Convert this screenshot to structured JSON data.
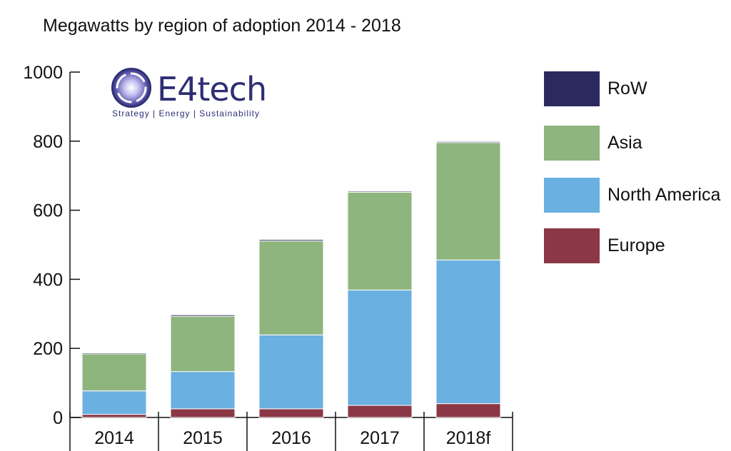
{
  "chart_data": {
    "type": "bar",
    "stacked": true,
    "title": "Megawatts by region of adoption 2014 - 2018",
    "categories": [
      "2014",
      "2015",
      "2016",
      "2017",
      "2018f"
    ],
    "series": [
      {
        "name": "Europe",
        "color": "#8b3746",
        "values": [
          9,
          25,
          25,
          35,
          40
        ]
      },
      {
        "name": "North America",
        "color": "#6ab0e0",
        "values": [
          68,
          108,
          214,
          334,
          416
        ]
      },
      {
        "name": "Asia",
        "color": "#8eb57e",
        "values": [
          107,
          160,
          272,
          283,
          340
        ]
      },
      {
        "name": "RoW",
        "color": "#2a2a5e",
        "values": [
          3,
          4,
          4,
          3,
          3
        ]
      }
    ],
    "legend_order": [
      "RoW",
      "Asia",
      "North America",
      "Europe"
    ],
    "legend_position": "right",
    "ylim": [
      0,
      1000
    ],
    "yticks": [
      0,
      200,
      400,
      600,
      800,
      1000
    ],
    "xlabel": "",
    "ylabel": "",
    "grid": false
  },
  "logo": {
    "name": "E4tech",
    "tagline": "Strategy | Energy | Sustainability"
  }
}
